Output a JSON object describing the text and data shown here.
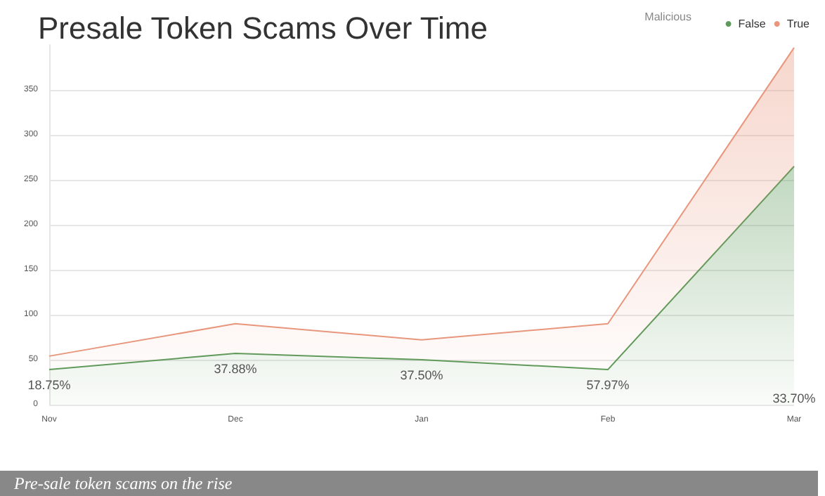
{
  "chart_data": {
    "type": "area",
    "title": "Presale Token Scams Over Time",
    "legend_title": "Malicious",
    "categories": [
      "Nov",
      "Dec",
      "Jan",
      "Feb",
      "Mar"
    ],
    "series": [
      {
        "name": "False",
        "color": "#5e9a5a",
        "values": [
          39,
          57,
          50,
          39,
          265
        ]
      },
      {
        "name": "True",
        "color": "#e8967c",
        "values": [
          15,
          33,
          22,
          51,
          132
        ]
      }
    ],
    "stacked": true,
    "ylim": [
      0,
      400
    ],
    "yticks": [
      0,
      50,
      100,
      150,
      200,
      250,
      300,
      350
    ],
    "grid": "y",
    "legend": "top right",
    "marker": "none",
    "line_style": "solid",
    "annotations": [
      {
        "text": "18.75%",
        "x": "Nov",
        "y": 39
      },
      {
        "text": "37.88%",
        "x": "Dec",
        "y": 57
      },
      {
        "text": "37.50%",
        "x": "Jan",
        "y": 50
      },
      {
        "text": "57.97%",
        "x": "Feb",
        "y": 39
      },
      {
        "text": "33.70%",
        "x": "Mar",
        "y": 24
      },
      "Pre-sale token scams on the rise"
    ]
  }
}
